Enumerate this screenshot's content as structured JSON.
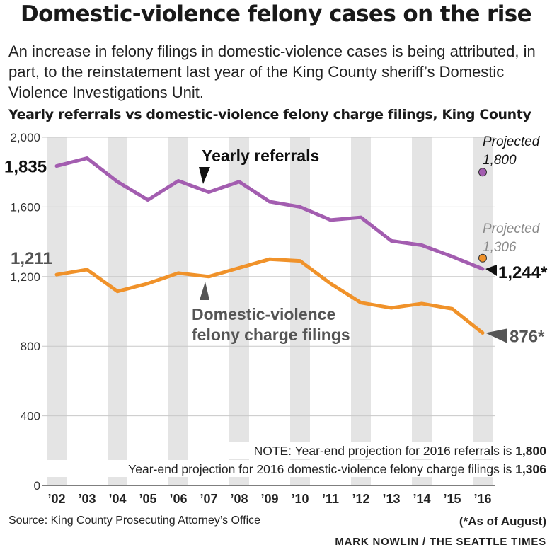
{
  "header": {
    "title": "Domestic-violence felony cases on the rise",
    "intro": "An increase in felony filings in domestic-violence cases is being attributed, in part, to the reinstatement last year of the King County sheriff’s Domestic Violence Investigations Unit.",
    "subtitle": "Yearly referrals vs domestic-violence felony charge filings, King County"
  },
  "footer": {
    "source": "Source: King County Prosecuting Attorney’s Office",
    "as_of": "(*As of August)",
    "credit": "MARK NOWLIN / THE SEATTLE TIMES"
  },
  "chart_data": {
    "type": "line",
    "x": [
      "’02",
      "’03",
      "’04",
      "’05",
      "’06",
      "’07",
      "’08",
      "’09",
      "’10",
      "’11",
      "’12",
      "’13",
      "’14",
      "’15",
      "’16"
    ],
    "ylim": [
      0,
      2000
    ],
    "yticks": [
      0,
      400,
      800,
      1200,
      1600,
      2000
    ],
    "ytick_labels": [
      "0",
      "400",
      "800",
      "1,200",
      "1,600",
      "2,000"
    ],
    "grid": false,
    "alternating_column_bands": true,
    "series": [
      {
        "name": "Yearly referrals",
        "color": "#a35db0",
        "values": [
          1835,
          1880,
          1745,
          1640,
          1750,
          1685,
          1745,
          1630,
          1600,
          1525,
          1540,
          1405,
          1380,
          1315,
          1244
        ],
        "start_label": "1,835",
        "end_label": "1,244*",
        "projection": {
          "title": "Projected",
          "label": "1,800",
          "value": 1800
        }
      },
      {
        "name": "Domestic-violence felony charge filings",
        "name_lines": [
          "Domestic-violence",
          "felony charge filings"
        ],
        "color": "#f0922a",
        "values": [
          1211,
          1240,
          1115,
          1160,
          1220,
          1200,
          1250,
          1300,
          1290,
          1160,
          1050,
          1020,
          1045,
          1015,
          876
        ],
        "start_label": "1,211",
        "end_label": "876*",
        "projection": {
          "title": "Projected",
          "label": "1,306",
          "value": 1306
        }
      }
    ],
    "note": {
      "line1_text": "NOTE: Year-end projection for 2016 referrals is ",
      "line1_value": "1,800",
      "line2_text": "Year-end projection for 2016 domestic-violence felony charge filings is ",
      "line2_value": "1,306"
    }
  }
}
